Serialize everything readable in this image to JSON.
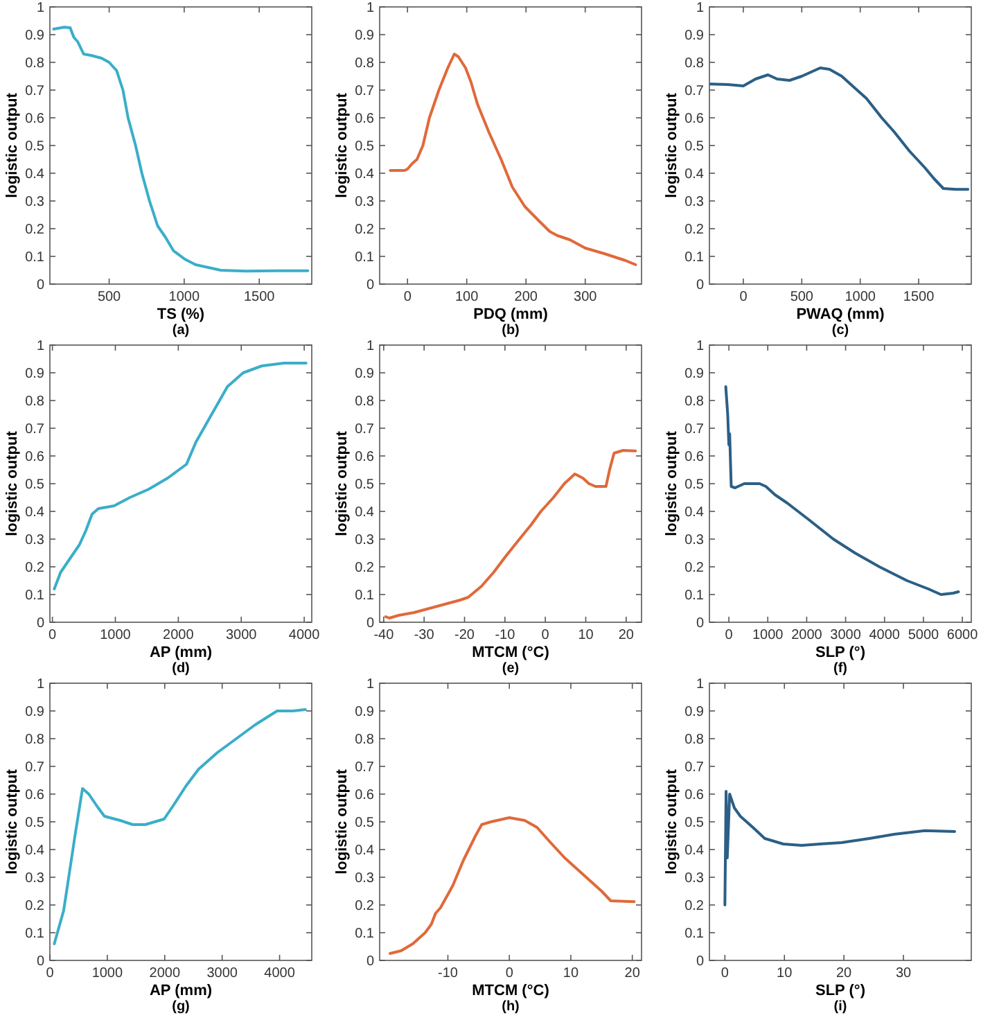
{
  "chart_data": [
    {
      "type": "line",
      "title": "(a)",
      "xlabel": "TS (%)",
      "ylabel": "logistic output",
      "xlim": [
        105,
        1850
      ],
      "xticks": [
        500,
        1000,
        1500
      ],
      "ylim": [
        0,
        1
      ],
      "yticks": [
        0,
        0.1,
        0.2,
        0.3,
        0.4,
        0.5,
        0.6,
        0.7,
        0.8,
        0.9,
        1
      ],
      "grid": false,
      "series": [
        {
          "color": "#3aaec8",
          "x": [
            130,
            200,
            240,
            265,
            290,
            330,
            380,
            450,
            500,
            550,
            592,
            626,
            676,
            718,
            769,
            823,
            874,
            929,
            1004,
            1076,
            1160,
            1244,
            1412,
            1622,
            1824
          ],
          "values": [
            0.92,
            0.927,
            0.925,
            0.89,
            0.875,
            0.83,
            0.825,
            0.815,
            0.8,
            0.77,
            0.7,
            0.6,
            0.5,
            0.4,
            0.3,
            0.21,
            0.17,
            0.12,
            0.09,
            0.07,
            0.06,
            0.05,
            0.047,
            0.048,
            0.048
          ]
        }
      ]
    },
    {
      "type": "line",
      "title": "(b)",
      "xlabel": "PDQ (mm)",
      "ylabel": "logistic output",
      "xlim": [
        -47,
        395
      ],
      "xticks": [
        0,
        100,
        200,
        300
      ],
      "ylim": [
        0,
        1
      ],
      "yticks": [
        0,
        0.1,
        0.2,
        0.3,
        0.4,
        0.5,
        0.6,
        0.7,
        0.8,
        0.9,
        1
      ],
      "grid": false,
      "series": [
        {
          "color": "#e0693a",
          "x": [
            -29,
            -5,
            0,
            8,
            16,
            26,
            37,
            53,
            68,
            79,
            86,
            98,
            107,
            118,
            137,
            158,
            177,
            198,
            221,
            240,
            253,
            274,
            300,
            332,
            368,
            385
          ],
          "values": [
            0.41,
            0.41,
            0.415,
            0.435,
            0.45,
            0.5,
            0.6,
            0.7,
            0.78,
            0.83,
            0.82,
            0.78,
            0.73,
            0.65,
            0.55,
            0.45,
            0.35,
            0.28,
            0.23,
            0.19,
            0.175,
            0.16,
            0.13,
            0.11,
            0.085,
            0.07
          ]
        }
      ]
    },
    {
      "type": "line",
      "title": "(c)",
      "xlabel": "PWAQ (mm)",
      "ylabel": "logistic output",
      "xlim": [
        -290,
        1950
      ],
      "xticks": [
        0,
        500,
        1000,
        1500
      ],
      "ylim": [
        0,
        1
      ],
      "yticks": [
        0,
        0.1,
        0.2,
        0.3,
        0.4,
        0.5,
        0.6,
        0.7,
        0.8,
        0.9,
        1
      ],
      "grid": false,
      "series": [
        {
          "color": "#2b5f86",
          "x": [
            -280,
            -132,
            0,
            105,
            211,
            289,
            395,
            500,
            579,
            658,
            737,
            842,
            947,
            1053,
            1184,
            1289,
            1421,
            1553,
            1632,
            1711,
            1816,
            1921
          ],
          "values": [
            0.722,
            0.72,
            0.715,
            0.74,
            0.755,
            0.74,
            0.735,
            0.75,
            0.765,
            0.78,
            0.775,
            0.75,
            0.71,
            0.67,
            0.6,
            0.55,
            0.48,
            0.42,
            0.38,
            0.345,
            0.342,
            0.342
          ]
        }
      ]
    },
    {
      "type": "line",
      "title": "(d)",
      "xlabel": "AP (mm)",
      "ylabel": "logistic output",
      "xlim": [
        -40,
        4120
      ],
      "xticks": [
        0,
        1000,
        2000,
        3000,
        4000
      ],
      "ylim": [
        0,
        1
      ],
      "yticks": [
        0,
        0.1,
        0.2,
        0.3,
        0.4,
        0.5,
        0.6,
        0.7,
        0.8,
        0.9,
        1
      ],
      "grid": false,
      "series": [
        {
          "color": "#3aaec8",
          "x": [
            30,
            130,
            280,
            430,
            530,
            630,
            730,
            980,
            1230,
            1530,
            1830,
            2130,
            2280,
            2530,
            2780,
            3030,
            3330,
            3680,
            4030
          ],
          "values": [
            0.12,
            0.18,
            0.23,
            0.28,
            0.33,
            0.39,
            0.41,
            0.42,
            0.45,
            0.48,
            0.52,
            0.57,
            0.65,
            0.75,
            0.85,
            0.9,
            0.925,
            0.935,
            0.935
          ]
        }
      ]
    },
    {
      "type": "line",
      "title": "(e)",
      "xlabel": "MTCM (°C)",
      "ylabel": "logistic output",
      "xlim": [
        -41,
        23.8
      ],
      "xticks": [
        -40,
        -30,
        -20,
        -10,
        0,
        10,
        20
      ],
      "ylim": [
        0,
        1
      ],
      "yticks": [
        0,
        0.1,
        0.2,
        0.3,
        0.4,
        0.5,
        0.6,
        0.7,
        0.8,
        0.9,
        1
      ],
      "grid": false,
      "series": [
        {
          "color": "#e0693a",
          "x": [
            -39.5,
            -38.6,
            -36.3,
            -32.5,
            -28.7,
            -24.9,
            -21.1,
            -19.1,
            -15.8,
            -12.8,
            -9.7,
            -6.4,
            -3.6,
            -1.1,
            2,
            4.7,
            7.3,
            9.3,
            10.8,
            12.4,
            15,
            15.9,
            17,
            19.2,
            22.3
          ],
          "values": [
            0.02,
            0.015,
            0.025,
            0.035,
            0.05,
            0.065,
            0.08,
            0.09,
            0.13,
            0.18,
            0.24,
            0.3,
            0.35,
            0.4,
            0.45,
            0.5,
            0.535,
            0.52,
            0.5,
            0.49,
            0.49,
            0.55,
            0.61,
            0.62,
            0.618
          ]
        }
      ]
    },
    {
      "type": "line",
      "title": "(f)",
      "xlabel": "SLP (°)",
      "ylabel": "logistic output",
      "xlim": [
        -500,
        6230
      ],
      "xticks": [
        0,
        1000,
        2000,
        3000,
        4000,
        5000,
        6000
      ],
      "ylim": [
        0,
        1
      ],
      "yticks": [
        0,
        0.1,
        0.2,
        0.3,
        0.4,
        0.5,
        0.6,
        0.7,
        0.8,
        0.9,
        1
      ],
      "grid": false,
      "series": [
        {
          "color": "#2b5f86",
          "x": [
            -80,
            -30,
            0,
            20,
            60,
            160,
            395,
            790,
            950,
            1185,
            1500,
            2055,
            2685,
            3240,
            3870,
            4580,
            5130,
            5450,
            5765,
            5900
          ],
          "values": [
            0.85,
            0.75,
            0.64,
            0.68,
            0.49,
            0.485,
            0.5,
            0.5,
            0.49,
            0.46,
            0.43,
            0.37,
            0.3,
            0.25,
            0.2,
            0.15,
            0.12,
            0.1,
            0.105,
            0.11
          ]
        }
      ]
    },
    {
      "type": "line",
      "title": "(g)",
      "xlabel": "AP (mm)",
      "ylabel": "logistic output",
      "xlim": [
        0,
        4560
      ],
      "xticks": [
        0,
        1000,
        2000,
        3000,
        4000
      ],
      "ylim": [
        0,
        1
      ],
      "yticks": [
        0,
        0.1,
        0.2,
        0.3,
        0.4,
        0.5,
        0.6,
        0.7,
        0.8,
        0.9,
        1
      ],
      "grid": false,
      "series": [
        {
          "color": "#3aaec8",
          "x": [
            77,
            240,
            328,
            437,
            514,
            568,
            678,
            842,
            951,
            1224,
            1443,
            1661,
            1989,
            2153,
            2372,
            2590,
            2918,
            3246,
            3574,
            3956,
            4230,
            4448
          ],
          "values": [
            0.06,
            0.18,
            0.3,
            0.45,
            0.55,
            0.62,
            0.6,
            0.55,
            0.52,
            0.505,
            0.49,
            0.49,
            0.51,
            0.56,
            0.63,
            0.69,
            0.75,
            0.8,
            0.85,
            0.9,
            0.9,
            0.905
          ]
        }
      ]
    },
    {
      "type": "line",
      "title": "(h)",
      "xlabel": "MTCM (°C)",
      "ylabel": "logistic output",
      "xlim": [
        -21.1,
        21.5
      ],
      "xticks": [
        -10,
        0,
        10,
        20
      ],
      "ylim": [
        0,
        1
      ],
      "yticks": [
        0,
        0.1,
        0.2,
        0.3,
        0.4,
        0.5,
        0.6,
        0.7,
        0.8,
        0.9,
        1
      ],
      "grid": false,
      "series": [
        {
          "color": "#e0693a",
          "x": [
            -19.4,
            -17.6,
            -15.7,
            -13.7,
            -12.7,
            -12,
            -11.2,
            -9.2,
            -7.5,
            -5.5,
            -4.5,
            -3,
            0,
            2.5,
            4.5,
            6.5,
            9,
            12,
            15,
            16.5,
            20.3
          ],
          "values": [
            0.025,
            0.035,
            0.06,
            0.1,
            0.13,
            0.17,
            0.19,
            0.27,
            0.36,
            0.45,
            0.49,
            0.5,
            0.515,
            0.505,
            0.48,
            0.43,
            0.37,
            0.31,
            0.25,
            0.215,
            0.212
          ]
        }
      ]
    },
    {
      "type": "line",
      "title": "(i)",
      "xlabel": "SLP (°)",
      "ylabel": "logistic output",
      "xlim": [
        -2.6,
        41.4
      ],
      "xticks": [
        0,
        10,
        20,
        30
      ],
      "ylim": [
        0,
        1
      ],
      "yticks": [
        0,
        0.1,
        0.2,
        0.3,
        0.4,
        0.5,
        0.6,
        0.7,
        0.8,
        0.9,
        1
      ],
      "grid": false,
      "series": [
        {
          "color": "#2b5f86",
          "x": [
            0,
            0.2,
            0.4,
            0.8,
            1.6,
            2.6,
            4.7,
            6.7,
            9.8,
            12.9,
            16,
            19.6,
            24.3,
            28.4,
            33.6,
            38.6
          ],
          "values": [
            0.2,
            0.61,
            0.37,
            0.6,
            0.55,
            0.52,
            0.48,
            0.44,
            0.42,
            0.415,
            0.42,
            0.425,
            0.44,
            0.455,
            0.468,
            0.465
          ]
        }
      ]
    }
  ]
}
